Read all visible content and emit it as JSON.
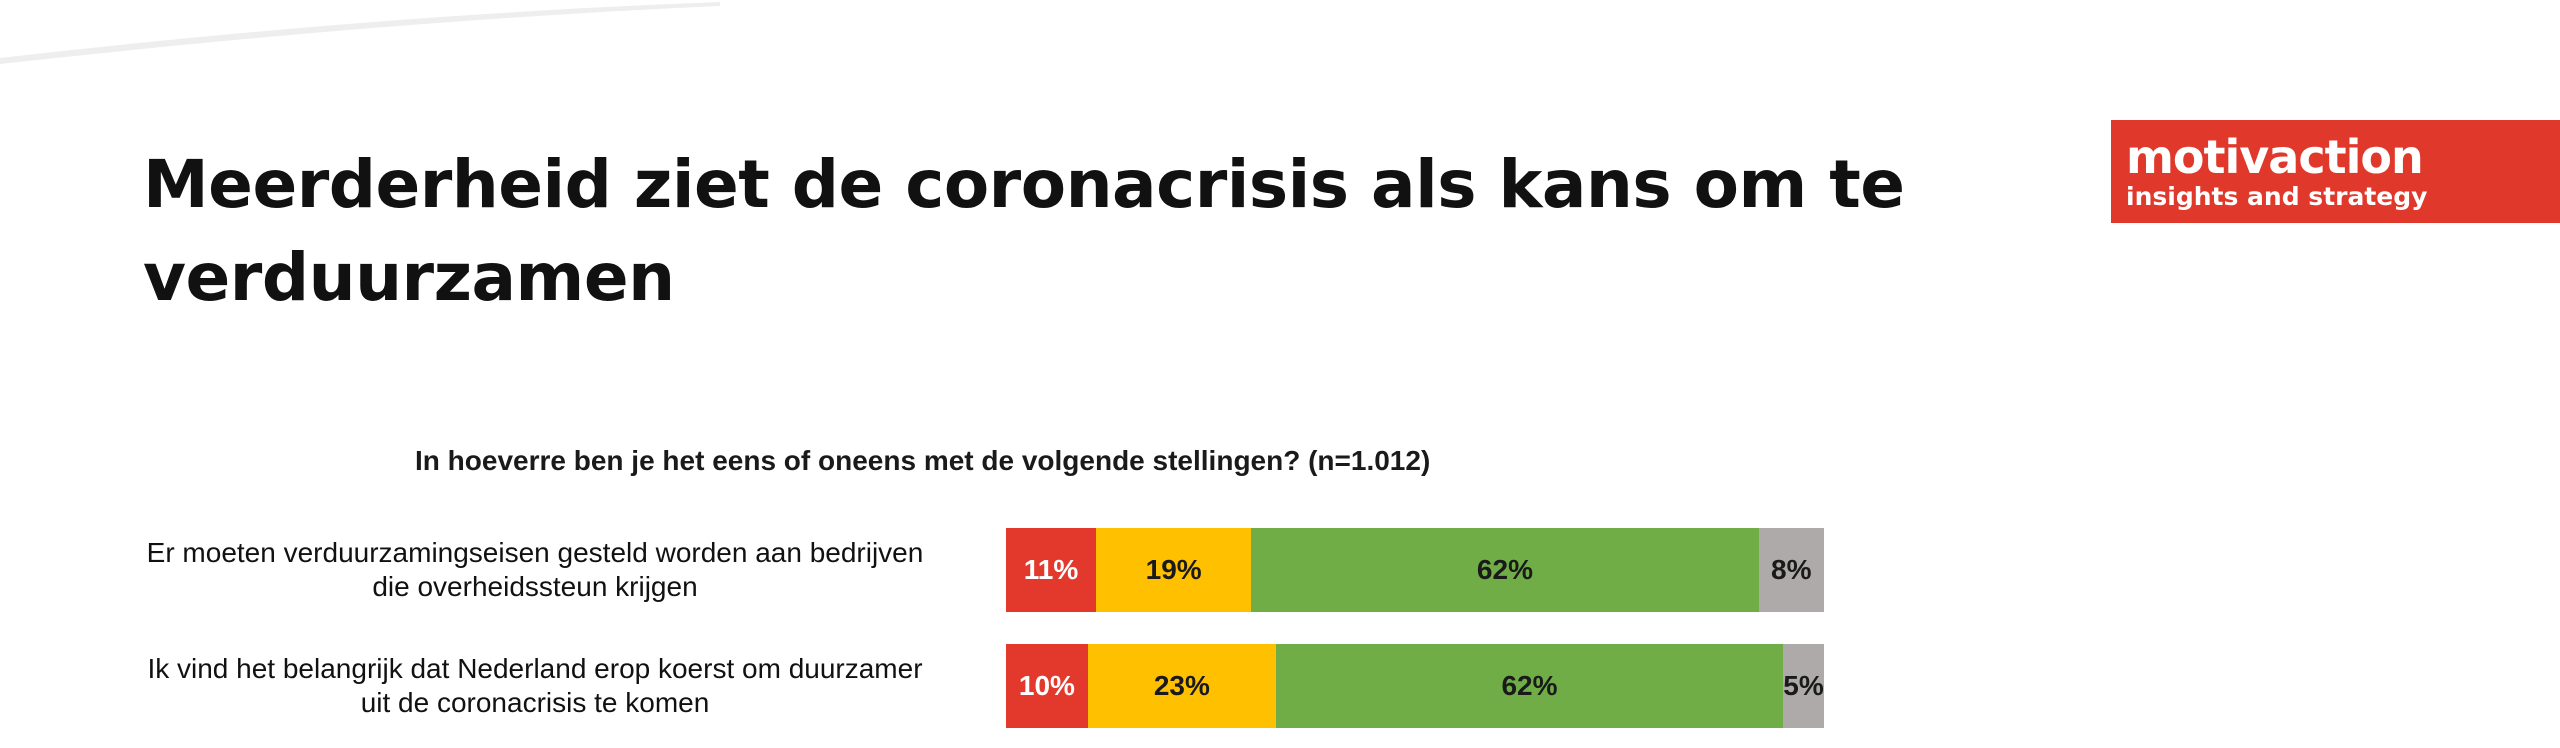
{
  "page": {
    "title": "Meerderheid ziet de coronacrisis als kans om te verduurzamen"
  },
  "logo": {
    "name": "motivaction",
    "tagline": "insights and strategy",
    "color": "#e0392b"
  },
  "chart_data": {
    "type": "bar",
    "orientation": "horizontal",
    "stacked": true,
    "title": "In hoeverre ben je het eens of oneens met de volgende stellingen? (n=1.012)",
    "categories": [
      "Er moeten verduurzamingseisen gesteld worden aan bedrijven die overheidssteun krijgen",
      "Ik vind het belangrijk dat Nederland erop koerst om duurzamer uit de coronacrisis te komen"
    ],
    "series": [
      {
        "color": "#e2392c",
        "text_color": "#ffffff",
        "values": [
          11,
          10
        ],
        "labels": [
          "11%",
          "10%"
        ]
      },
      {
        "color": "#ffc000",
        "text_color": "#1a1a1a",
        "values": [
          19,
          23
        ],
        "labels": [
          "19%",
          "23%"
        ]
      },
      {
        "color": "#70ad47",
        "text_color": "#1a1a1a",
        "values": [
          62,
          62
        ],
        "labels": [
          "62%",
          "62%"
        ]
      },
      {
        "color": "#aeaaaa",
        "text_color": "#1a1a1a",
        "values": [
          8,
          5
        ],
        "labels": [
          "8%",
          "5%"
        ]
      }
    ],
    "xlim": [
      0,
      100
    ],
    "legend": "none",
    "grid": false
  }
}
